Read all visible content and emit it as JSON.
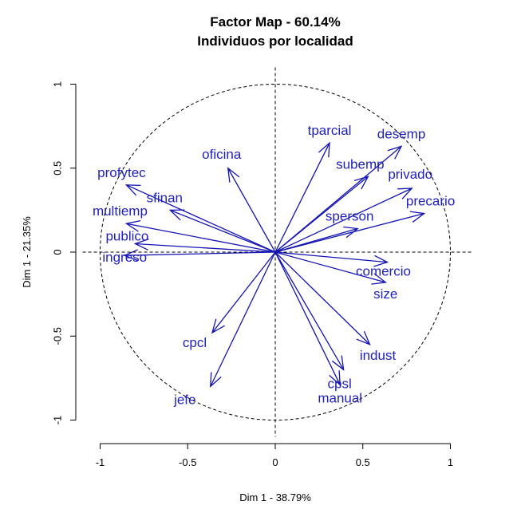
{
  "chart_data": {
    "type": "scatter",
    "title": "Factor Map - 60.14%",
    "subtitle": "Individuos por localidad",
    "xlabel": "Dim 1 - 38.79%",
    "ylabel": "Dim 1 - 21.35%",
    "xlim": [
      -1,
      1
    ],
    "ylim": [
      -1,
      1
    ],
    "xticks": [
      "-1",
      "-0.5",
      "0",
      "0.5",
      "1"
    ],
    "yticks": [
      "-1",
      "-0.5",
      "0",
      "0.5",
      "1"
    ],
    "unit_circle": true,
    "arrow_color": "#1414b4",
    "label_color": "#1f1fbf",
    "variables": [
      {
        "name": "tparcial",
        "x": 0.31,
        "y": 0.65
      },
      {
        "name": "desemp",
        "x": 0.72,
        "y": 0.63
      },
      {
        "name": "oficina",
        "x": -0.27,
        "y": 0.5
      },
      {
        "name": "subemp",
        "x": 0.53,
        "y": 0.45
      },
      {
        "name": "privado",
        "x": 0.78,
        "y": 0.38
      },
      {
        "name": "profytec",
        "x": -0.85,
        "y": 0.4
      },
      {
        "name": "sfinan",
        "x": -0.6,
        "y": 0.25
      },
      {
        "name": "precario",
        "x": 0.85,
        "y": 0.23
      },
      {
        "name": "sperson",
        "x": 0.47,
        "y": 0.14
      },
      {
        "name": "multiemp",
        "x": -0.85,
        "y": 0.17
      },
      {
        "name": "publico",
        "x": -0.8,
        "y": 0.05
      },
      {
        "name": "ingreso",
        "x": -0.86,
        "y": -0.02
      },
      {
        "name": "comercio",
        "x": 0.64,
        "y": -0.06
      },
      {
        "name": "size",
        "x": 0.63,
        "y": -0.18
      },
      {
        "name": "cpcl",
        "x": -0.36,
        "y": -0.48
      },
      {
        "name": "indust",
        "x": 0.54,
        "y": -0.55
      },
      {
        "name": "cpsl",
        "x": 0.39,
        "y": -0.7
      },
      {
        "name": "manual",
        "x": 0.37,
        "y": -0.79
      },
      {
        "name": "jefe",
        "x": -0.37,
        "y": -0.8
      }
    ]
  }
}
